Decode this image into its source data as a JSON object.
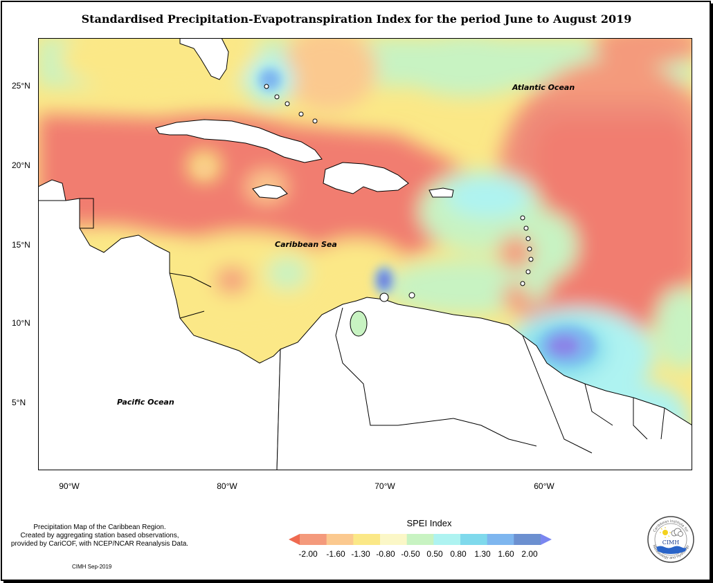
{
  "title": "Standardised Precipitation-Evapotranspiration Index for the period June to August 2019",
  "map": {
    "y_ticks": [
      "25°N",
      "20°N",
      "15°N",
      "10°N",
      "5°N"
    ],
    "x_ticks": [
      "90°W",
      "80°W",
      "70°W",
      "60°W"
    ],
    "labels": {
      "atlantic": "Atlantic Ocean",
      "caribbean": "Caribbean Sea",
      "pacific": "Pacific Ocean"
    }
  },
  "description": [
    "Precipitation Map of the Caribbean Region.",
    "Created by aggregating station based observations,",
    "provided by CariCOF, with NCEP/NCAR Reanalysis Data."
  ],
  "credit": "CIMH Sep-2019",
  "legend": {
    "title": "SPEI Index",
    "breaks": [
      "-2.00",
      "-1.60",
      "-1.30",
      "-0.80",
      "-0.50",
      "0.50",
      "0.80",
      "1.30",
      "1.60",
      "2.00"
    ],
    "colors": [
      "#ef6a50",
      "#f49a7c",
      "#fbc98f",
      "#fbe887",
      "#fbf7c7",
      "#c8f3c2",
      "#aef3f1",
      "#7fd9ec",
      "#7eb6ef",
      "#6c90d0",
      "#7a86f0"
    ]
  },
  "logo": {
    "top_text": "Caribbean Institute for",
    "name": "CIMH",
    "bottom_text": "Meteorology and Hydrology"
  }
}
